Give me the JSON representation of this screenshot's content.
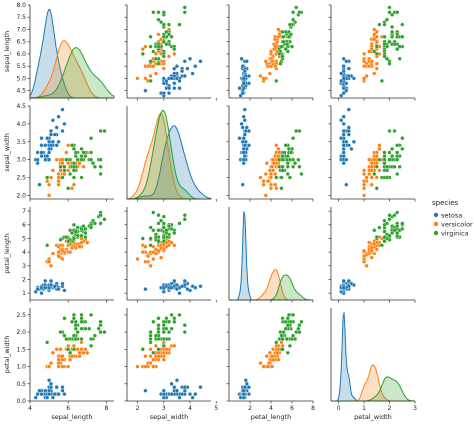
{
  "chart_data": {
    "type": "scatter",
    "title": "",
    "legend": {
      "title": "species",
      "placement": "right",
      "entries": [
        {
          "name": "setosa",
          "color": "#1f77b4"
        },
        {
          "name": "versicolor",
          "color": "#ff7f0e"
        },
        {
          "name": "virginica",
          "color": "#2ca02c"
        }
      ]
    },
    "grid": false,
    "variables": [
      "sepal_length",
      "sepal_width",
      "petal_length",
      "petal_width"
    ],
    "axis_labels": {
      "sepal_length": "sepal_length",
      "sepal_width": "sepal_width",
      "petal_length": "petal_length",
      "petal_width": "petal_width"
    },
    "x_ranges": {
      "sepal_length": [
        4,
        8.4
      ],
      "sepal_width": [
        1.6,
        4.8
      ],
      "petal_length": [
        0,
        8
      ],
      "petal_width": [
        -0.3,
        3
      ]
    },
    "y_ranges": {
      "sepal_length": [
        4.2,
        8.0
      ],
      "sepal_width": [
        1.9,
        4.5
      ],
      "petal_length": [
        0.5,
        7.3
      ],
      "petal_width": [
        0.0,
        2.7
      ]
    },
    "x_ticks": {
      "sepal_length": [
        "4",
        "6",
        "8"
      ],
      "sepal_width": [
        "2",
        "3",
        "4",
        "5"
      ],
      "petal_length": [
        "2",
        "4",
        "6",
        "8"
      ],
      "petal_width": [
        "0",
        "1",
        "2",
        "3"
      ]
    },
    "y_ticks": {
      "sepal_length": [
        "4.5",
        "5.0",
        "5.5",
        "6.0",
        "6.5",
        "7.0",
        "7.5",
        "8.0"
      ],
      "sepal_width": [
        "2.0",
        "2.5",
        "3.0",
        "3.5",
        "4.0",
        "4.5"
      ],
      "petal_length": [
        "1",
        "2",
        "3",
        "4",
        "5",
        "6",
        "7"
      ],
      "petal_width": [
        "0.0",
        "0.5",
        "1.0",
        "1.5",
        "2.0",
        "2.5"
      ]
    },
    "series": [
      {
        "name": "setosa",
        "color": "#1f77b4",
        "sepal_length": [
          5.1,
          4.9,
          4.7,
          4.6,
          5.0,
          5.4,
          4.6,
          5.0,
          4.4,
          4.9,
          5.4,
          4.8,
          4.8,
          4.3,
          5.8,
          5.7,
          5.4,
          5.1,
          5.7,
          5.1,
          5.4,
          5.1,
          4.6,
          5.1,
          4.8,
          5.0,
          5.0,
          5.2,
          5.2,
          4.7,
          4.8,
          5.4,
          5.2,
          5.5,
          4.9,
          5.0,
          5.5,
          4.9,
          4.4,
          5.1,
          5.0,
          4.5,
          4.4,
          5.0,
          5.1,
          4.8,
          5.1,
          4.6,
          5.3,
          5.0
        ],
        "sepal_width": [
          3.5,
          3.0,
          3.2,
          3.1,
          3.6,
          3.9,
          3.4,
          3.4,
          2.9,
          3.1,
          3.7,
          3.4,
          3.0,
          3.0,
          4.0,
          4.4,
          3.9,
          3.5,
          3.8,
          3.8,
          3.4,
          3.7,
          3.6,
          3.3,
          3.4,
          3.0,
          3.4,
          3.5,
          3.4,
          3.2,
          3.1,
          3.4,
          4.1,
          4.2,
          3.1,
          3.2,
          3.5,
          3.6,
          3.0,
          3.4,
          3.5,
          2.3,
          3.2,
          3.5,
          3.8,
          3.0,
          3.8,
          3.2,
          3.7,
          3.3
        ],
        "petal_length": [
          1.4,
          1.4,
          1.3,
          1.5,
          1.4,
          1.7,
          1.4,
          1.5,
          1.4,
          1.5,
          1.5,
          1.6,
          1.4,
          1.1,
          1.2,
          1.5,
          1.3,
          1.4,
          1.7,
          1.5,
          1.7,
          1.5,
          1.0,
          1.7,
          1.9,
          1.6,
          1.6,
          1.5,
          1.4,
          1.6,
          1.6,
          1.5,
          1.5,
          1.4,
          1.5,
          1.2,
          1.3,
          1.4,
          1.3,
          1.5,
          1.3,
          1.3,
          1.3,
          1.6,
          1.9,
          1.4,
          1.6,
          1.4,
          1.5,
          1.4
        ],
        "petal_width": [
          0.2,
          0.2,
          0.2,
          0.2,
          0.2,
          0.4,
          0.3,
          0.2,
          0.2,
          0.1,
          0.2,
          0.2,
          0.1,
          0.1,
          0.2,
          0.4,
          0.4,
          0.3,
          0.3,
          0.3,
          0.2,
          0.4,
          0.2,
          0.5,
          0.2,
          0.2,
          0.4,
          0.2,
          0.2,
          0.2,
          0.2,
          0.4,
          0.1,
          0.2,
          0.2,
          0.2,
          0.2,
          0.1,
          0.2,
          0.2,
          0.3,
          0.3,
          0.2,
          0.6,
          0.4,
          0.3,
          0.2,
          0.2,
          0.2,
          0.2
        ]
      },
      {
        "name": "versicolor",
        "color": "#ff7f0e",
        "sepal_length": [
          7.0,
          6.4,
          6.9,
          5.5,
          6.5,
          5.7,
          6.3,
          4.9,
          6.6,
          5.2,
          5.0,
          5.9,
          6.0,
          6.1,
          5.6,
          6.7,
          5.6,
          5.8,
          6.2,
          5.6,
          5.9,
          6.1,
          6.3,
          6.1,
          6.4,
          6.6,
          6.8,
          6.7,
          6.0,
          5.7,
          5.5,
          5.5,
          5.8,
          6.0,
          5.4,
          6.0,
          6.7,
          6.3,
          5.6,
          5.5,
          5.5,
          6.1,
          5.8,
          5.0,
          5.6,
          5.7,
          5.7,
          6.2,
          5.1,
          5.7
        ],
        "sepal_width": [
          3.2,
          3.2,
          3.1,
          2.3,
          2.8,
          2.8,
          3.3,
          2.4,
          2.9,
          2.7,
          2.0,
          3.0,
          2.2,
          2.9,
          2.9,
          3.1,
          3.0,
          2.7,
          2.2,
          2.5,
          3.2,
          2.8,
          2.5,
          2.8,
          2.9,
          3.0,
          2.8,
          3.0,
          2.9,
          2.6,
          2.4,
          2.4,
          2.7,
          2.7,
          3.0,
          3.4,
          3.1,
          2.3,
          3.0,
          2.5,
          2.6,
          3.0,
          2.6,
          2.3,
          2.7,
          3.0,
          2.9,
          2.9,
          2.5,
          2.8
        ],
        "petal_length": [
          4.7,
          4.5,
          4.9,
          4.0,
          4.6,
          4.5,
          4.7,
          3.3,
          4.6,
          3.9,
          3.5,
          4.2,
          4.0,
          4.7,
          3.6,
          4.4,
          4.5,
          4.1,
          4.5,
          3.9,
          4.8,
          4.0,
          4.9,
          4.7,
          4.3,
          4.4,
          4.8,
          5.0,
          4.5,
          3.5,
          3.8,
          3.7,
          3.9,
          5.1,
          4.5,
          4.5,
          4.7,
          4.4,
          4.1,
          4.0,
          4.4,
          4.6,
          4.0,
          3.3,
          4.2,
          4.2,
          4.2,
          4.3,
          3.0,
          4.1
        ],
        "petal_width": [
          1.4,
          1.5,
          1.5,
          1.3,
          1.5,
          1.3,
          1.6,
          1.0,
          1.3,
          1.4,
          1.0,
          1.5,
          1.0,
          1.4,
          1.3,
          1.4,
          1.5,
          1.0,
          1.5,
          1.1,
          1.8,
          1.3,
          1.5,
          1.2,
          1.3,
          1.4,
          1.4,
          1.7,
          1.5,
          1.0,
          1.1,
          1.0,
          1.2,
          1.6,
          1.5,
          1.6,
          1.5,
          1.3,
          1.3,
          1.3,
          1.2,
          1.4,
          1.2,
          1.0,
          1.3,
          1.2,
          1.3,
          1.3,
          1.1,
          1.3
        ]
      },
      {
        "name": "virginica",
        "color": "#2ca02c",
        "sepal_length": [
          6.3,
          5.8,
          7.1,
          6.3,
          6.5,
          7.6,
          4.9,
          7.3,
          6.7,
          7.2,
          6.5,
          6.4,
          6.8,
          5.7,
          5.8,
          6.4,
          6.5,
          7.7,
          7.7,
          6.0,
          6.9,
          5.6,
          7.7,
          6.3,
          6.7,
          7.2,
          6.2,
          6.1,
          6.4,
          7.2,
          7.4,
          7.9,
          6.4,
          6.3,
          6.1,
          7.7,
          6.3,
          6.4,
          6.0,
          6.9,
          6.7,
          6.9,
          5.8,
          6.8,
          6.7,
          6.7,
          6.3,
          6.5,
          6.2,
          5.9
        ],
        "sepal_width": [
          3.3,
          2.7,
          3.0,
          2.9,
          3.0,
          3.0,
          2.5,
          2.9,
          2.5,
          3.6,
          3.2,
          2.7,
          3.0,
          2.5,
          2.8,
          3.2,
          3.0,
          3.8,
          2.6,
          2.2,
          3.2,
          2.8,
          2.8,
          2.7,
          3.3,
          3.2,
          2.8,
          3.0,
          2.8,
          3.0,
          2.8,
          3.8,
          2.8,
          2.8,
          2.6,
          3.0,
          3.4,
          3.1,
          3.0,
          3.1,
          3.1,
          3.1,
          2.7,
          3.2,
          3.3,
          3.0,
          2.5,
          3.0,
          3.4,
          3.0
        ],
        "petal_length": [
          6.0,
          5.1,
          5.9,
          5.6,
          5.8,
          6.6,
          4.5,
          6.3,
          5.8,
          6.1,
          5.1,
          5.3,
          5.5,
          5.0,
          5.1,
          5.3,
          5.5,
          6.7,
          6.9,
          5.0,
          5.7,
          4.9,
          6.7,
          4.9,
          5.7,
          6.0,
          4.8,
          4.9,
          5.6,
          5.8,
          6.1,
          6.4,
          5.6,
          5.1,
          5.6,
          6.1,
          5.6,
          5.5,
          4.8,
          5.4,
          5.6,
          5.1,
          5.1,
          5.9,
          5.7,
          5.2,
          5.0,
          5.2,
          5.4,
          5.1
        ],
        "petal_width": [
          2.5,
          1.9,
          2.1,
          1.8,
          2.2,
          2.1,
          1.7,
          1.8,
          1.8,
          2.5,
          2.0,
          1.9,
          2.1,
          2.0,
          2.4,
          2.3,
          1.8,
          2.2,
          2.3,
          1.5,
          2.3,
          2.0,
          2.0,
          1.8,
          2.1,
          1.8,
          1.8,
          1.8,
          2.1,
          1.6,
          1.9,
          2.0,
          2.2,
          1.5,
          1.4,
          2.3,
          2.4,
          1.8,
          1.8,
          2.1,
          2.4,
          2.3,
          1.9,
          2.3,
          2.5,
          2.3,
          1.9,
          2.0,
          2.3,
          1.8
        ]
      }
    ]
  }
}
